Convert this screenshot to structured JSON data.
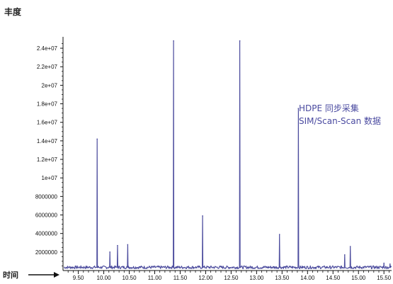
{
  "chart_data": {
    "type": "line",
    "title": "",
    "ylabel": "丰度",
    "xlabel": "时间",
    "ylim": [
      0,
      25000000
    ],
    "xlim": [
      9.2,
      15.65
    ],
    "y_ticks": [
      "2000000",
      "4000000",
      "6000000",
      "8000000",
      "1e+07",
      "1.2e+07",
      "1.4e+07",
      "1.6e+07",
      "1.8e+07",
      "2e+07",
      "2.2e+07",
      "2.4e+07"
    ],
    "x_ticks": [
      "9.50",
      "10.00",
      "10.50",
      "11.00",
      "11.50",
      "12.00",
      "12.50",
      "13.00",
      "13.50",
      "14.00",
      "14.50",
      "15.00",
      "15.50"
    ],
    "annotation": [
      "HDPE 同步采集",
      "SIM/Scan-Scan 数据"
    ],
    "series": [
      {
        "line_color": "#4d4d9e",
        "baseline": 350000,
        "peaks": [
          {
            "x": 9.87,
            "y": 14200000
          },
          {
            "x": 10.12,
            "y": 2000000
          },
          {
            "x": 10.27,
            "y": 2700000
          },
          {
            "x": 10.47,
            "y": 2800000
          },
          {
            "x": 11.37,
            "y": 24800000
          },
          {
            "x": 11.94,
            "y": 5900000
          },
          {
            "x": 12.67,
            "y": 24800000
          },
          {
            "x": 13.45,
            "y": 3900000
          },
          {
            "x": 13.82,
            "y": 17500000
          },
          {
            "x": 14.73,
            "y": 1700000
          },
          {
            "x": 14.84,
            "y": 2600000
          },
          {
            "x": 15.5,
            "y": 800000
          },
          {
            "x": 15.62,
            "y": 700000
          }
        ]
      }
    ]
  }
}
